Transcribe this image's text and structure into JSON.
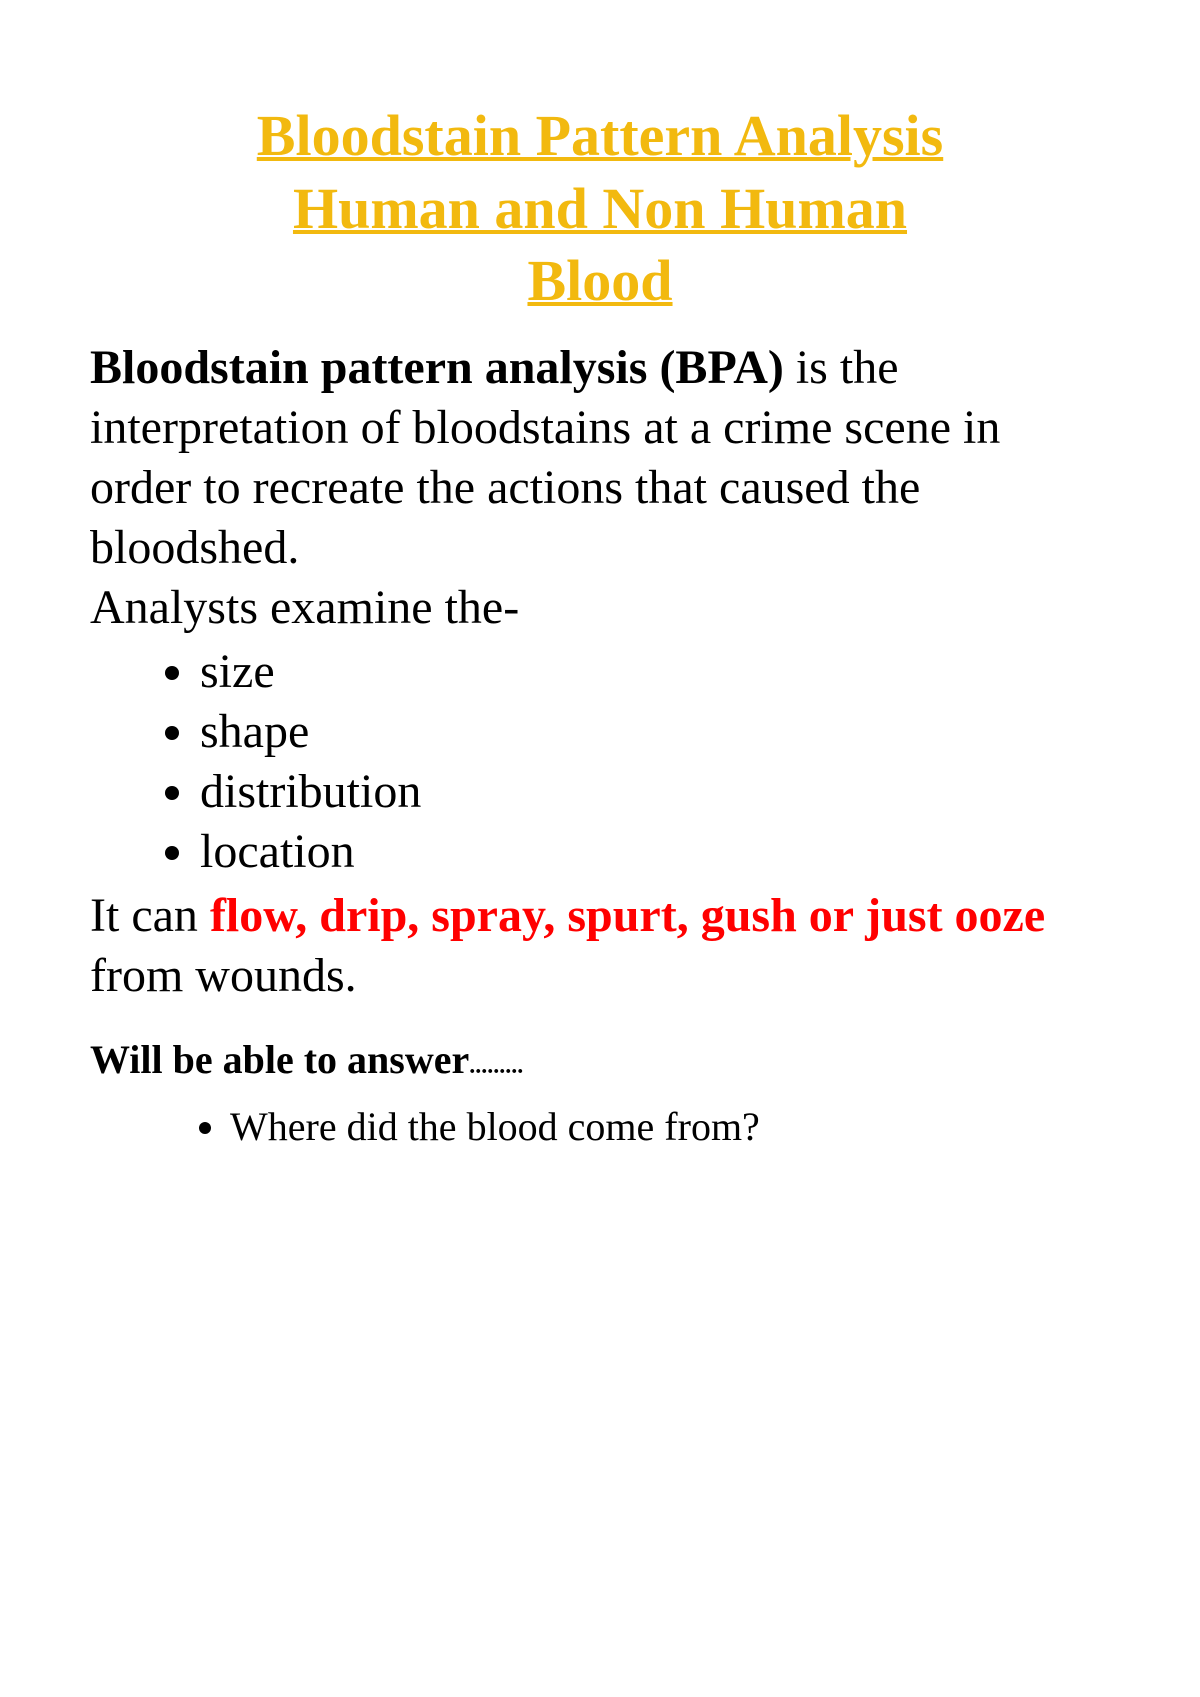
{
  "colors": {
    "title": "#f2b90f",
    "body": "#000000",
    "highlight": "#ff0000",
    "background": "#ffffff"
  },
  "title": {
    "line1": "Bloodstain Pattern Analysis",
    "line2": "Human and Non Human",
    "line3": "Blood"
  },
  "intro": {
    "bold_lead": "Bloodstain pattern analysis (BPA)",
    "rest": " is the interpretation of bloodstains at a crime scene in order to recreate the actions that caused the bloodshed."
  },
  "examine_lead": "Analysts examine the-",
  "examine_items": [
    "size",
    "shape",
    "distribution",
    "location"
  ],
  "flow_sentence": {
    "before": "It can ",
    "highlight": "flow, drip, spray, spurt, gush or just ooze",
    "after": " from wounds."
  },
  "answer_heading": "Will be able to answer",
  "answer_dots": ".........",
  "answers": [
    "Where did the blood come from?"
  ]
}
